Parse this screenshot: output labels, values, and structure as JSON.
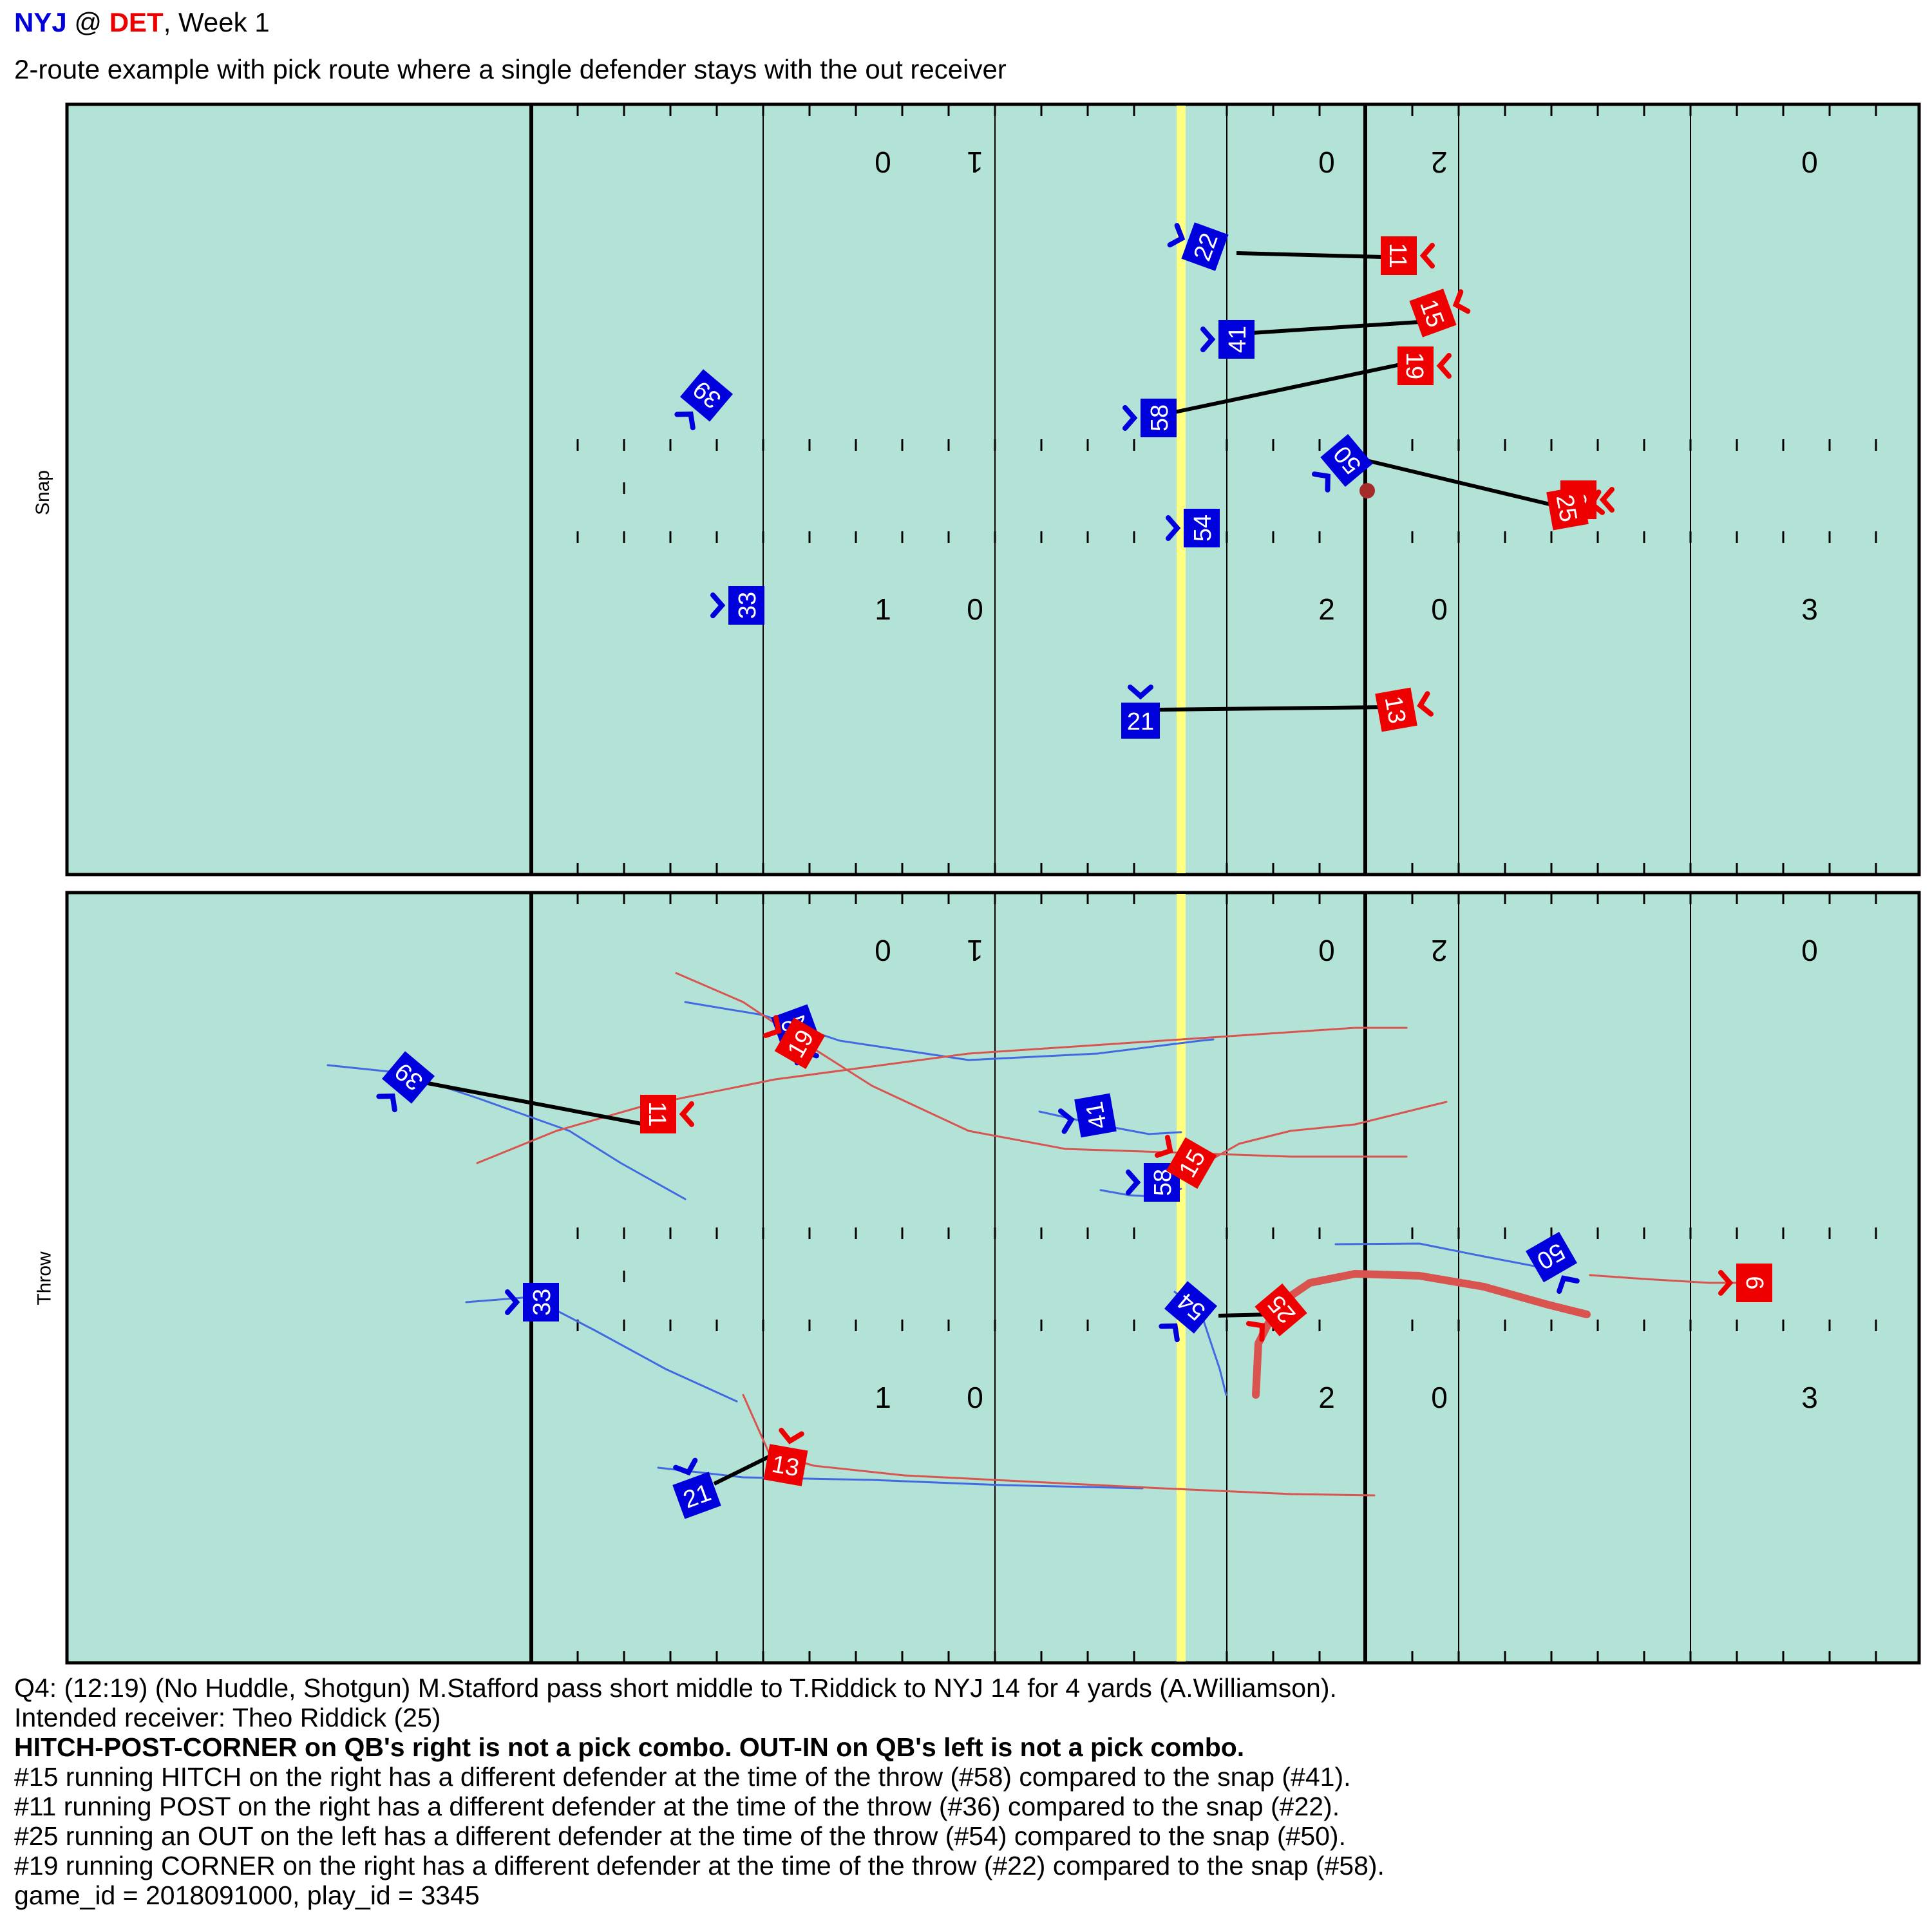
{
  "header": {
    "away_team": "NYJ",
    "at": "@",
    "home_team": "DET",
    "week": ", Week 1",
    "subtitle": "2-route example with pick route where a single defender stays with the out receiver"
  },
  "colors": {
    "field": "#b3e2d6",
    "offense": "#ee0000",
    "defense": "#0000dd",
    "scrimmage_line": "#ffff80",
    "offense_track": "#d9534f",
    "defense_track": "#4169e1",
    "ball": "#a52a2a"
  },
  "panels": [
    {
      "label": "Snap",
      "yard_numbers_top": [
        "0",
        "1",
        "0",
        "2",
        "0"
      ],
      "yard_numbers_bottom": [
        "1",
        "0",
        "2",
        "0",
        "3"
      ],
      "players": [
        {
          "team": "defense",
          "number": "22",
          "rotation": -70
        },
        {
          "team": "defense",
          "number": "41",
          "rotation": -90
        },
        {
          "team": "defense",
          "number": "58",
          "rotation": -90
        },
        {
          "team": "defense",
          "number": "39",
          "rotation": -140
        },
        {
          "team": "defense",
          "number": "50",
          "rotation": -130
        },
        {
          "team": "defense",
          "number": "54",
          "rotation": -90
        },
        {
          "team": "defense",
          "number": "33",
          "rotation": -90
        },
        {
          "team": "defense",
          "number": "21",
          "rotation": 0
        },
        {
          "team": "offense",
          "number": "11",
          "rotation": 90
        },
        {
          "team": "offense",
          "number": "15",
          "rotation": 70
        },
        {
          "team": "offense",
          "number": "19",
          "rotation": 90
        },
        {
          "team": "offense",
          "number": "9",
          "rotation": 90
        },
        {
          "team": "offense",
          "number": "25",
          "rotation": 80
        },
        {
          "team": "offense",
          "number": "13",
          "rotation": 80
        }
      ]
    },
    {
      "label": "Throw",
      "yard_numbers_top": [
        "0",
        "1",
        "0",
        "2",
        "0"
      ],
      "yard_numbers_bottom": [
        "1",
        "0",
        "2",
        "0",
        "3"
      ],
      "players": [
        {
          "team": "defense",
          "number": "39",
          "rotation": -140
        },
        {
          "team": "defense",
          "number": "28",
          "rotation": 160
        },
        {
          "team": "defense",
          "number": "41",
          "rotation": -100
        },
        {
          "team": "defense",
          "number": "58",
          "rotation": -90
        },
        {
          "team": "defense",
          "number": "33",
          "rotation": -90
        },
        {
          "team": "defense",
          "number": "54",
          "rotation": -140
        },
        {
          "team": "defense",
          "number": "50",
          "rotation": -210
        },
        {
          "team": "defense",
          "number": "21",
          "rotation": -20
        },
        {
          "team": "offense",
          "number": "11",
          "rotation": 90
        },
        {
          "team": "offense",
          "number": "19",
          "rotation": -60
        },
        {
          "team": "offense",
          "number": "15",
          "rotation": -60
        },
        {
          "team": "offense",
          "number": "25",
          "rotation": -130
        },
        {
          "team": "offense",
          "number": "9",
          "rotation": -90
        },
        {
          "team": "offense",
          "number": "13",
          "rotation": 10
        }
      ]
    }
  ],
  "footer": {
    "play_description": "Q4: (12:19) (No Huddle, Shotgun) M.Stafford pass short middle to T.Riddick to NYJ 14 for 4 yards (A.Williamson).",
    "intended_receiver": "Intended receiver: Theo Riddick (25)",
    "verdict": "HITCH-POST-CORNER on QB's right is not a pick combo. OUT-IN on QB's left is not a pick combo.",
    "notes": [
      "#15 running HITCH on the right has a different defender at the time of the throw (#58) compared to the snap (#41).",
      "#11 running POST on the right has a different defender at the time of the throw (#36) compared to the snap (#22).",
      "#25 running an OUT on the left has a different defender at the time of the throw (#54) compared to the snap (#50).",
      "#19 running CORNER on the right has a different defender at the time of the throw (#22) compared to the snap (#58)."
    ],
    "ids": "game_id = 2018091000, play_id = 3345"
  }
}
